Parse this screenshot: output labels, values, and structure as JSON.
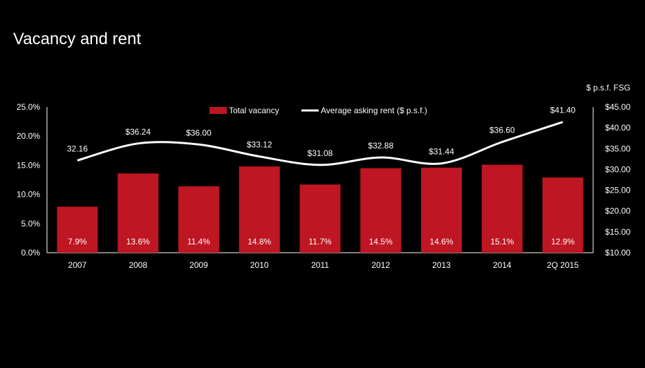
{
  "page": {
    "title": "Vacancy and rent"
  },
  "chart_data": {
    "type": "bar+line",
    "title": "Vacancy and rent",
    "categories": [
      "2007",
      "2008",
      "2009",
      "2010",
      "2011",
      "2012",
      "2013",
      "2014",
      "2Q 2015"
    ],
    "series": [
      {
        "name": "Total vacancy",
        "type": "bar",
        "axis": "left",
        "color": "#be1622",
        "values": [
          7.9,
          13.6,
          11.4,
          14.8,
          11.7,
          14.5,
          14.6,
          15.1,
          12.9
        ],
        "labels": [
          "7.9%",
          "13.6%",
          "11.4%",
          "14.8%",
          "11.7%",
          "14.5%",
          "14.6%",
          "15.1%",
          "12.9%"
        ]
      },
      {
        "name": "Average asking rent ($ p.s.f.)",
        "type": "line",
        "axis": "right",
        "color": "#ffffff",
        "values": [
          32.16,
          36.24,
          36.0,
          33.12,
          31.08,
          32.88,
          31.44,
          36.6,
          41.4
        ],
        "labels": [
          "32.16",
          "$36.24",
          "$36.00",
          "$33.12",
          "$31.08",
          "$32.88",
          "$31.44",
          "$36.60",
          "$41.40"
        ]
      }
    ],
    "y_left": {
      "range": [
        0,
        25
      ],
      "ticks": [
        0,
        5,
        10,
        15,
        20,
        25
      ],
      "tick_labels": [
        "0.0%",
        "5.0%",
        "10.0%",
        "15.0%",
        "20.0%",
        "25.0%"
      ]
    },
    "y_right": {
      "label": "$ p.s.f. FSG",
      "range": [
        10,
        45
      ],
      "ticks": [
        10,
        15,
        20,
        25,
        30,
        35,
        40,
        45
      ],
      "tick_labels": [
        "$10.00",
        "$15.00",
        "$20.00",
        "$25.00",
        "$30.00",
        "$35.00",
        "$40.00",
        "$45.00"
      ]
    },
    "grid": false,
    "legend": "top-center"
  }
}
